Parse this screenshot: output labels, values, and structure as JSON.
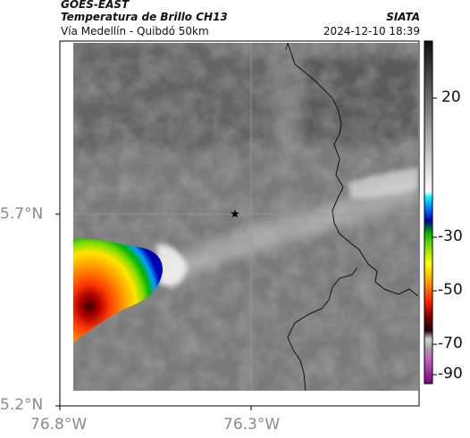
{
  "header": {
    "satellite": "GOES-EAST",
    "product": "Temperatura de Brillo CH13",
    "organization": "SIATA",
    "region": "Vía Medellín - Quibdó 50km",
    "datetime": "2024-12-10 18:39"
  },
  "axes": {
    "y_ticks": [
      {
        "label": "5.7°N",
        "value": 5.7
      },
      {
        "label": "5.2°N",
        "value": 5.2
      }
    ],
    "x_ticks": [
      {
        "label": "76.8°W",
        "value": -76.8
      },
      {
        "label": "76.3°W",
        "value": -76.3
      }
    ]
  },
  "colorbar": {
    "ticks": [
      {
        "label": "20",
        "value": 20
      },
      {
        "label": "-30",
        "value": -30
      },
      {
        "label": "-50",
        "value": -50
      },
      {
        "label": "-70",
        "value": -70
      },
      {
        "label": "-90",
        "value": -90
      }
    ],
    "range": [
      -95,
      40
    ]
  },
  "map": {
    "marker_icon": "star-icon",
    "cloud_palette": [
      "#ffffff",
      "#00a0ff",
      "#0000a0",
      "#00c800",
      "#ffff00",
      "#ffa000",
      "#ff5000",
      "#d00000",
      "#500000"
    ],
    "background_gray": "#7a7a7a"
  }
}
